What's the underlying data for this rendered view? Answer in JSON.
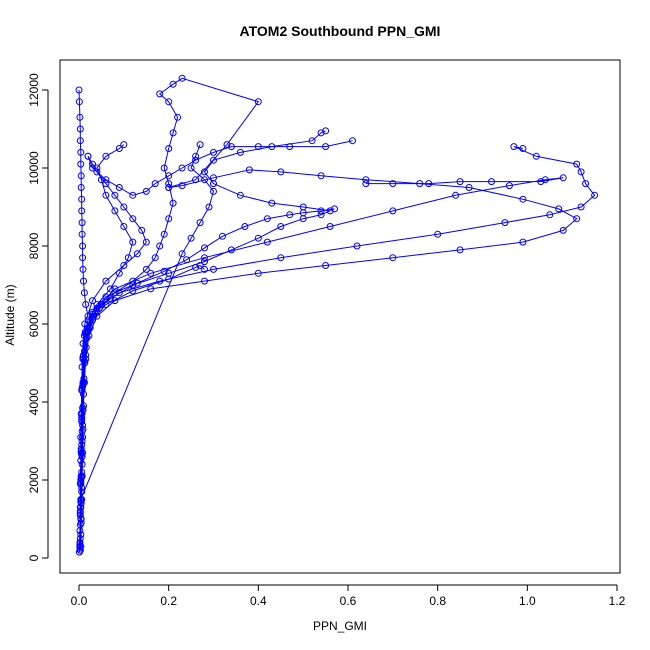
{
  "chart_data": {
    "type": "line",
    "title": "ATOM2 Southbound PPN_GMI",
    "xlabel": "PPN_GMI",
    "ylabel": "Altitude (m)",
    "xlim": [
      0,
      1.2
    ],
    "ylim": [
      0,
      12000
    ],
    "x_ticks": [
      0.0,
      0.2,
      0.4,
      0.6,
      0.8,
      1.0,
      1.2
    ],
    "x_tick_labels": [
      "0.0",
      "0.2",
      "0.4",
      "0.6",
      "0.8",
      "1.0",
      "1.2"
    ],
    "y_ticks": [
      0,
      2000,
      4000,
      6000,
      8000,
      10000,
      12000
    ],
    "y_tick_labels": [
      "0",
      "2000",
      "4000",
      "6000",
      "8000",
      "10000",
      "12000"
    ],
    "grid": false,
    "legend": "none",
    "series_color": "#0000ff",
    "marker": "open-circle",
    "series": [
      {
        "values": [
          [
            0.003,
            200
          ],
          [
            0.004,
            600
          ],
          [
            0.004,
            1000
          ],
          [
            0.005,
            1400
          ],
          [
            0.006,
            1800
          ],
          [
            0.006,
            2200
          ],
          [
            0.007,
            2600
          ],
          [
            0.007,
            3000
          ],
          [
            0.008,
            3400
          ],
          [
            0.009,
            3800
          ],
          [
            0.01,
            4200
          ],
          [
            0.011,
            4600
          ],
          [
            0.013,
            5000
          ],
          [
            0.016,
            5400
          ],
          [
            0.02,
            5800
          ],
          [
            0.03,
            6200
          ],
          [
            0.05,
            6500
          ],
          [
            0.09,
            6800
          ],
          [
            0.18,
            7100
          ],
          [
            0.3,
            7400
          ],
          [
            0.45,
            7700
          ],
          [
            0.62,
            8000
          ],
          [
            0.8,
            8300
          ],
          [
            0.95,
            8600
          ],
          [
            1.05,
            8800
          ],
          [
            1.12,
            9000
          ],
          [
            1.15,
            9300
          ],
          [
            1.13,
            9600
          ],
          [
            1.12,
            9900
          ],
          [
            1.11,
            10100
          ],
          [
            1.02,
            10300
          ],
          [
            0.97,
            10550
          ],
          [
            0.99,
            10500
          ]
        ]
      },
      {
        "values": [
          [
            0.004,
            300
          ],
          [
            0.005,
            900
          ],
          [
            0.006,
            1500
          ],
          [
            0.007,
            2100
          ],
          [
            0.008,
            2700
          ],
          [
            0.009,
            3300
          ],
          [
            0.01,
            3900
          ],
          [
            0.012,
            4500
          ],
          [
            0.015,
            5100
          ],
          [
            0.022,
            5700
          ],
          [
            0.04,
            6200
          ],
          [
            0.08,
            6600
          ],
          [
            0.16,
            6900
          ],
          [
            0.28,
            7100
          ],
          [
            0.4,
            7300
          ],
          [
            0.55,
            7500
          ],
          [
            0.7,
            7700
          ],
          [
            0.85,
            7900
          ],
          [
            0.99,
            8100
          ],
          [
            1.08,
            8400
          ],
          [
            1.11,
            8700
          ],
          [
            1.07,
            8950
          ],
          [
            0.99,
            9200
          ],
          [
            0.87,
            9500
          ],
          [
            0.76,
            9600
          ],
          [
            0.64,
            9700
          ],
          [
            0.54,
            9800
          ],
          [
            0.45,
            9900
          ],
          [
            0.38,
            9950
          ],
          [
            0.3,
            9750
          ],
          [
            0.23,
            9550
          ],
          [
            0.2,
            9500
          ]
        ]
      },
      {
        "values": [
          [
            0.002,
            400
          ],
          [
            0.003,
            1200
          ],
          [
            0.004,
            2000
          ],
          [
            0.005,
            2800
          ],
          [
            0.006,
            3600
          ],
          [
            0.008,
            4400
          ],
          [
            0.01,
            5200
          ],
          [
            0.014,
            5800
          ],
          [
            0.03,
            6300
          ],
          [
            0.06,
            6700
          ],
          [
            0.12,
            7000
          ],
          [
            0.2,
            7300
          ],
          [
            0.28,
            7600
          ],
          [
            0.34,
            7900
          ],
          [
            0.4,
            8200
          ],
          [
            0.45,
            8500
          ],
          [
            0.5,
            8700
          ],
          [
            0.54,
            8800
          ],
          [
            0.56,
            8900
          ],
          [
            0.5,
            9000
          ],
          [
            0.43,
            9100
          ],
          [
            0.36,
            9300
          ],
          [
            0.3,
            9600
          ],
          [
            0.28,
            9900
          ],
          [
            0.3,
            10200
          ],
          [
            0.36,
            10400
          ],
          [
            0.43,
            10550
          ],
          [
            0.52,
            10700
          ],
          [
            0.54,
            10900
          ],
          [
            0.55,
            10950
          ]
        ]
      },
      {
        "values": [
          [
            0.003,
            200
          ],
          [
            0.005,
            1000
          ],
          [
            0.006,
            1700
          ],
          [
            0.007,
            2400
          ],
          [
            0.008,
            3100
          ],
          [
            0.009,
            3800
          ],
          [
            0.011,
            4500
          ],
          [
            0.015,
            5200
          ],
          [
            0.025,
            5900
          ],
          [
            0.045,
            6400
          ],
          [
            0.08,
            6800
          ],
          [
            0.12,
            7100
          ],
          [
            0.15,
            7400
          ],
          [
            0.17,
            7700
          ],
          [
            0.18,
            8000
          ],
          [
            0.19,
            8300
          ],
          [
            0.2,
            8700
          ],
          [
            0.21,
            9100
          ],
          [
            0.2,
            9600
          ],
          [
            0.19,
            10000
          ],
          [
            0.2,
            10500
          ],
          [
            0.21,
            10900
          ],
          [
            0.22,
            11300
          ],
          [
            0.2,
            11700
          ],
          [
            0.18,
            11900
          ],
          [
            0.21,
            12150
          ],
          [
            0.23,
            12300
          ],
          [
            0.4,
            11700
          ],
          [
            0.33,
            10600
          ],
          [
            0.26,
            9700
          ],
          [
            0.2,
            9500
          ]
        ]
      },
      {
        "values": [
          [
            0.002,
            300
          ],
          [
            0.003,
            1100
          ],
          [
            0.004,
            1900
          ],
          [
            0.005,
            2700
          ],
          [
            0.006,
            3500
          ],
          [
            0.007,
            4300
          ],
          [
            0.009,
            5100
          ],
          [
            0.012,
            5700
          ],
          [
            0.02,
            6100
          ],
          [
            0.04,
            6500
          ],
          [
            0.07,
            6900
          ],
          [
            0.09,
            7300
          ],
          [
            0.11,
            7700
          ],
          [
            0.12,
            8100
          ],
          [
            0.1,
            8500
          ],
          [
            0.08,
            8900
          ],
          [
            0.06,
            9300
          ],
          [
            0.05,
            9700
          ],
          [
            0.04,
            10000
          ],
          [
            0.06,
            10300
          ],
          [
            0.09,
            10500
          ],
          [
            0.1,
            10600
          ]
        ]
      },
      {
        "values": [
          [
            0.004,
            1500
          ],
          [
            0.23,
            7800
          ],
          [
            0.25,
            8200
          ],
          [
            0.27,
            8600
          ],
          [
            0.29,
            9000
          ],
          [
            0.3,
            9400
          ],
          [
            0.28,
            9700
          ],
          [
            0.25,
            10000
          ],
          [
            0.26,
            10300
          ],
          [
            0.27,
            10600
          ]
        ]
      },
      {
        "values": [
          [
            0.001,
            150
          ],
          [
            0.002,
            700
          ],
          [
            0.003,
            1300
          ],
          [
            0.003,
            1900
          ],
          [
            0.004,
            2500
          ],
          [
            0.004,
            3100
          ],
          [
            0.005,
            3700
          ],
          [
            0.006,
            4300
          ],
          [
            0.007,
            4900
          ],
          [
            0.009,
            5500
          ],
          [
            0.013,
            6000
          ],
          [
            0.03,
            6600
          ],
          [
            0.06,
            7100
          ],
          [
            0.1,
            7500
          ],
          [
            0.13,
            7800
          ],
          [
            0.15,
            8100
          ],
          [
            0.14,
            8400
          ],
          [
            0.12,
            8700
          ],
          [
            0.1,
            9000
          ],
          [
            0.08,
            9300
          ],
          [
            0.06,
            9600
          ],
          [
            0.04,
            9900
          ],
          [
            0.03,
            10100
          ],
          [
            0.02,
            10300
          ]
        ]
      },
      {
        "values": [
          [
            0.002,
            250
          ],
          [
            0.003,
            850
          ],
          [
            0.004,
            1450
          ],
          [
            0.005,
            2050
          ],
          [
            0.006,
            2650
          ],
          [
            0.007,
            3250
          ],
          [
            0.008,
            3850
          ],
          [
            0.009,
            4450
          ],
          [
            0.012,
            5050
          ],
          [
            0.018,
            5650
          ],
          [
            0.03,
            6100
          ],
          [
            0.06,
            6500
          ],
          [
            0.12,
            6850
          ],
          [
            0.2,
            7150
          ],
          [
            0.26,
            7450
          ],
          [
            0.27,
            7500
          ],
          [
            0.28,
            7400
          ]
        ]
      },
      {
        "values": [
          [
            0.0,
            12000
          ],
          [
            0.001,
            11700
          ],
          [
            0.002,
            11300
          ],
          [
            0.003,
            11000
          ],
          [
            0.003,
            10700
          ],
          [
            0.004,
            10400
          ],
          [
            0.004,
            10100
          ],
          [
            0.005,
            9800
          ],
          [
            0.005,
            9500
          ],
          [
            0.006,
            9200
          ],
          [
            0.006,
            8900
          ],
          [
            0.007,
            8600
          ],
          [
            0.007,
            8300
          ],
          [
            0.008,
            8000
          ],
          [
            0.008,
            7700
          ],
          [
            0.009,
            7400
          ],
          [
            0.01,
            7100
          ],
          [
            0.012,
            6800
          ],
          [
            0.015,
            6500
          ],
          [
            0.02,
            6200
          ]
        ]
      },
      {
        "values": [
          [
            0.003,
            500
          ],
          [
            0.004,
            1300
          ],
          [
            0.005,
            2100
          ],
          [
            0.006,
            2900
          ],
          [
            0.007,
            3700
          ],
          [
            0.009,
            4500
          ],
          [
            0.012,
            5300
          ],
          [
            0.02,
            5900
          ],
          [
            0.04,
            6400
          ],
          [
            0.08,
            6900
          ],
          [
            0.16,
            7300
          ],
          [
            0.28,
            7700
          ],
          [
            0.42,
            8100
          ],
          [
            0.56,
            8500
          ],
          [
            0.7,
            8900
          ],
          [
            0.84,
            9300
          ],
          [
            0.96,
            9550
          ],
          [
            1.04,
            9700
          ],
          [
            1.08,
            9750
          ],
          [
            1.03,
            9650
          ],
          [
            0.92,
            9650
          ],
          [
            0.85,
            9650
          ],
          [
            0.78,
            9600
          ],
          [
            0.7,
            9600
          ],
          [
            0.64,
            9600
          ]
        ]
      },
      {
        "values": [
          [
            0.002,
            350
          ],
          [
            0.003,
            1150
          ],
          [
            0.004,
            1950
          ],
          [
            0.005,
            2750
          ],
          [
            0.006,
            3550
          ],
          [
            0.007,
            4350
          ],
          [
            0.009,
            5150
          ],
          [
            0.014,
            5750
          ],
          [
            0.03,
            6250
          ],
          [
            0.07,
            6650
          ],
          [
            0.13,
            7050
          ],
          [
            0.19,
            7350
          ],
          [
            0.24,
            7650
          ],
          [
            0.28,
            7950
          ],
          [
            0.32,
            8250
          ],
          [
            0.37,
            8500
          ],
          [
            0.42,
            8700
          ],
          [
            0.47,
            8800
          ],
          [
            0.5,
            8850
          ],
          [
            0.54,
            8900
          ],
          [
            0.57,
            8950
          ]
        ]
      },
      {
        "values": [
          [
            0.02,
            10300
          ],
          [
            0.03,
            10000
          ],
          [
            0.06,
            9700
          ],
          [
            0.09,
            9500
          ],
          [
            0.12,
            9300
          ],
          [
            0.15,
            9400
          ],
          [
            0.17,
            9600
          ],
          [
            0.2,
            9800
          ],
          [
            0.23,
            10000
          ],
          [
            0.26,
            10200
          ],
          [
            0.3,
            10400
          ],
          [
            0.34,
            10550
          ],
          [
            0.4,
            10550
          ],
          [
            0.47,
            10550
          ],
          [
            0.55,
            10550
          ],
          [
            0.61,
            10700
          ]
        ]
      }
    ]
  }
}
